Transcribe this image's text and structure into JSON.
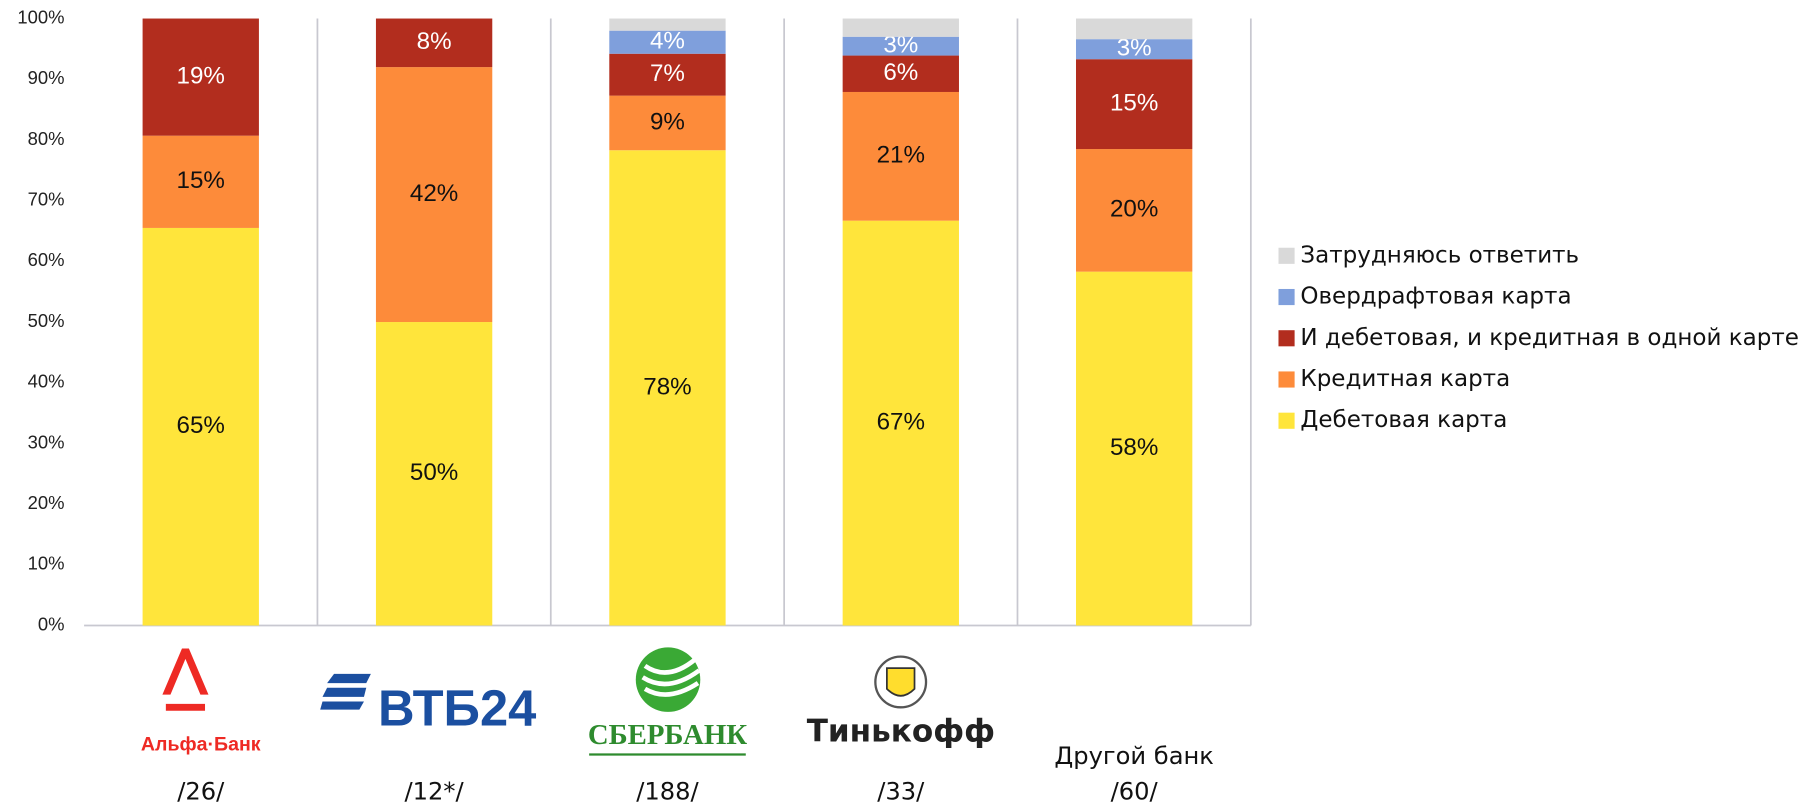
{
  "chart_data": {
    "type": "stacked_bar",
    "categories": [
      "Альфа·Банк",
      "ВТБ24",
      "СБЕРБАНК",
      "Тинькофф",
      "Другой банк"
    ],
    "sample_sizes": [
      "/26/",
      "/12*/",
      "/188/",
      "/33/",
      "/60/"
    ],
    "series": [
      {
        "name": "Дебетовая карта",
        "color": "#ffe53b",
        "label_color": "#111111",
        "values": [
          65.5,
          50,
          78.3,
          66.7,
          58.3
        ],
        "value_labels": [
          "65%",
          "50%",
          "78%",
          "67%",
          "58%"
        ]
      },
      {
        "name": "Кредитная карта",
        "color": "#fd8b3a",
        "label_color": "#111111",
        "values": [
          15.2,
          42,
          9,
          21.2,
          20.2
        ],
        "value_labels": [
          "15%",
          "42%",
          "9%",
          "21%",
          "20%"
        ]
      },
      {
        "name": "И дебетовая, и кредитная в одной карте",
        "color": "#b22d1e",
        "label_color": "#ffffff",
        "values": [
          19.3,
          8,
          6.9,
          6,
          14.8
        ],
        "value_labels": [
          "19%",
          "8%",
          "7%",
          "6%",
          "15%"
        ]
      },
      {
        "name": "Овердрафтовая карта",
        "color": "#7f9fdc",
        "label_color": "#ffffff",
        "values": [
          0,
          0,
          3.8,
          3.1,
          3.3
        ],
        "value_labels": [
          null,
          null,
          "4%",
          "3%",
          "3%"
        ]
      },
      {
        "name": "Затрудняюсь ответить",
        "color": "#d9d9d9",
        "values": [
          0,
          0,
          2,
          3,
          3.4
        ]
      }
    ],
    "ylim": [
      0,
      100
    ],
    "yticks": [
      {
        "value": 0,
        "label": "0%"
      },
      {
        "value": 10,
        "label": "10%"
      },
      {
        "value": 20,
        "label": "20%"
      },
      {
        "value": 30,
        "label": "30%"
      },
      {
        "value": 40,
        "label": "40%"
      },
      {
        "value": 50,
        "label": "50%"
      },
      {
        "value": 60,
        "label": "60%"
      },
      {
        "value": 70,
        "label": "70%"
      },
      {
        "value": 80,
        "label": "80%"
      },
      {
        "value": 90,
        "label": "90%"
      },
      {
        "value": 100,
        "label": "100%"
      }
    ]
  }
}
